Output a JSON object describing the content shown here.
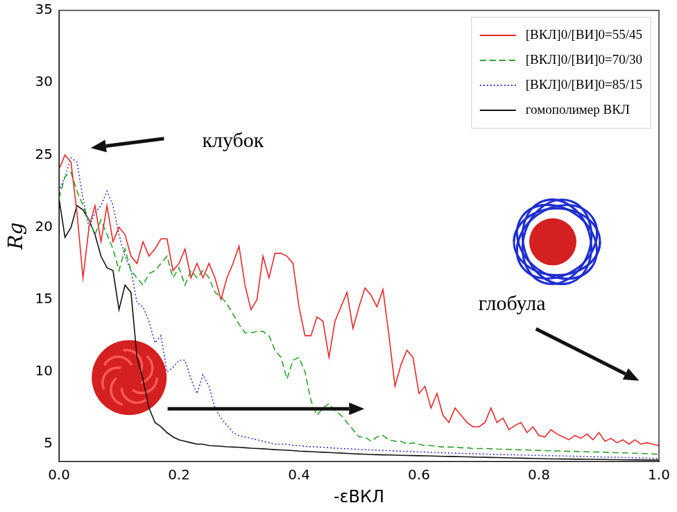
{
  "chart_data": {
    "type": "line",
    "x_label": "-εВКЛ",
    "y_label": "Rg",
    "annotations": [
      "клубок",
      "глобула"
    ],
    "legend": "upper right",
    "grid": false,
    "xlim": [
      0,
      1
    ],
    "xticks": [
      {
        "value": 0,
        "label": "0.0"
      },
      {
        "value": 0.2,
        "label": "0.2"
      },
      {
        "value": 0.4,
        "label": "0.4"
      },
      {
        "value": 0.6,
        "label": "0.6"
      },
      {
        "value": 0.8,
        "label": "0.8"
      },
      {
        "value": 1,
        "label": "1.0"
      }
    ],
    "ylim": [
      3.8,
      35
    ],
    "yticks": [
      5,
      10,
      15,
      20,
      25,
      30,
      35
    ],
    "x": [
      0,
      0.01,
      0.02,
      0.03,
      0.04,
      0.05,
      0.06,
      0.07,
      0.08,
      0.09,
      0.1,
      0.11,
      0.12,
      0.13,
      0.14,
      0.15,
      0.16,
      0.17,
      0.18,
      0.19,
      0.2,
      0.21,
      0.22,
      0.23,
      0.24,
      0.25,
      0.26,
      0.27,
      0.28,
      0.29,
      0.3,
      0.31,
      0.32,
      0.33,
      0.34,
      0.35,
      0.36,
      0.37,
      0.38,
      0.39,
      0.4,
      0.41,
      0.42,
      0.43,
      0.44,
      0.45,
      0.46,
      0.47,
      0.48,
      0.49,
      0.5,
      0.51,
      0.52,
      0.53,
      0.54,
      0.55,
      0.56,
      0.57,
      0.58,
      0.59,
      0.6,
      0.61,
      0.62,
      0.63,
      0.64,
      0.65,
      0.66,
      0.67,
      0.68,
      0.69,
      0.7,
      0.71,
      0.72,
      0.73,
      0.74,
      0.75,
      0.76,
      0.77,
      0.78,
      0.79,
      0.8,
      0.81,
      0.82,
      0.83,
      0.84,
      0.85,
      0.86,
      0.87,
      0.88,
      0.89,
      0.9,
      0.91,
      0.92,
      0.93,
      0.94,
      0.95,
      0.96,
      0.97,
      0.98,
      0.99,
      1
    ],
    "series": [
      {
        "name": "[ВКЛ]0/[ВИ]0=55/45",
        "color": "#e8282b",
        "line_style": "solid",
        "values": [
          24,
          25,
          24.5,
          21,
          16.5,
          20,
          21.5,
          19,
          21.5,
          19,
          20,
          19.5,
          18,
          17.5,
          19,
          18,
          18.5,
          19.2,
          19.2,
          17,
          17.5,
          18.5,
          16.5,
          17.5,
          16.5,
          17.5,
          16.5,
          15,
          16.5,
          17.5,
          18.7,
          16,
          14.3,
          15,
          18,
          16.5,
          18.2,
          18.2,
          18,
          17.5,
          14.5,
          12.5,
          12.5,
          13.8,
          13.5,
          11,
          13.5,
          14.5,
          15.5,
          13,
          14.5,
          15.8,
          15.3,
          14.5,
          15.7,
          12.5,
          9,
          10.5,
          11.5,
          11,
          8.5,
          9,
          7.5,
          8.5,
          7,
          6.5,
          7.5,
          7,
          6.5,
          6.2,
          6.2,
          6.5,
          7.5,
          6.5,
          6.8,
          6,
          6.3,
          6.5,
          5.8,
          6.2,
          5.6,
          5.5,
          6,
          5.7,
          5.5,
          5.3,
          5.6,
          5.4,
          5.7,
          5.3,
          5.8,
          5.2,
          5.4,
          5.1,
          5.3,
          5.0,
          5.3,
          5.0,
          5.1,
          5.0,
          4.9
        ]
      },
      {
        "name": "[ВКЛ]0/[ВИ]0=70/30",
        "color": "#2ca02c",
        "line_style": "dashed",
        "values": [
          22,
          23.5,
          23.8,
          22.5,
          21.5,
          20.5,
          19.5,
          20.5,
          19.5,
          18.5,
          17,
          18.5,
          17,
          16.5,
          16,
          16.8,
          17,
          17.5,
          18,
          16.5,
          17.2,
          16,
          17,
          16.5,
          17,
          16.5,
          15.5,
          15.2,
          14.7,
          14,
          13.3,
          12.7,
          12.7,
          12.8,
          12.8,
          12.5,
          11.5,
          11,
          9.5,
          10.8,
          11,
          10,
          8,
          7,
          7.5,
          7.8,
          7.3,
          7,
          6.5,
          6,
          5.5,
          5.5,
          5.2,
          5.5,
          5.6,
          5.3,
          5.2,
          5.2,
          5.0,
          5.1,
          5.0,
          4.9,
          4.9,
          4.85,
          4.8,
          4.8,
          4.8,
          4.75,
          4.75,
          4.7,
          4.7,
          4.7,
          4.68,
          4.66,
          4.65,
          4.64,
          4.62,
          4.6,
          4.6,
          4.58,
          4.57,
          4.55,
          4.54,
          4.53,
          4.52,
          4.5,
          4.5,
          4.48,
          4.47,
          4.46,
          4.45,
          4.44,
          4.42,
          4.41,
          4.4,
          4.38,
          4.37,
          4.36,
          4.34,
          4.32,
          4.3
        ]
      },
      {
        "name": "[ВКЛ]0/[ВИ]0=85/15",
        "color": "#3535d6",
        "line_style": "dotted",
        "values": [
          22.5,
          23.5,
          24.8,
          24.5,
          22,
          20,
          21,
          21.5,
          22.5,
          21.5,
          19.5,
          18,
          17,
          14.8,
          14.5,
          13.5,
          12,
          12.5,
          10,
          10.3,
          10.8,
          10.8,
          9.5,
          8.5,
          9.8,
          9,
          7.5,
          6.8,
          6.3,
          5.8,
          5.6,
          5.5,
          5.4,
          5.3,
          5.2,
          5.1,
          5.0,
          5.0,
          5.0,
          4.9,
          4.9,
          4.85,
          4.82,
          4.8,
          4.78,
          4.75,
          4.72,
          4.7,
          4.68,
          4.66,
          4.64,
          4.62,
          4.6,
          4.58,
          4.56,
          4.55,
          4.53,
          4.51,
          4.5,
          4.48,
          4.46,
          4.45,
          4.43,
          4.42,
          4.4,
          4.39,
          4.38,
          4.36,
          4.35,
          4.34,
          4.33,
          4.32,
          4.3,
          4.29,
          4.28,
          4.27,
          4.26,
          4.25,
          4.24,
          4.23,
          4.22,
          4.21,
          4.2,
          4.19,
          4.18,
          4.17,
          4.16,
          4.15,
          4.14,
          4.13,
          4.12,
          4.11,
          4.1,
          4.09,
          4.08,
          4.07,
          4.06,
          4.05,
          4.04,
          4.02,
          4.0
        ]
      },
      {
        "name": "гомополимер ВКЛ",
        "color": "#111111",
        "line_style": "solid",
        "values": [
          22,
          19.3,
          20,
          21.5,
          21.2,
          20.5,
          19.5,
          18,
          17.2,
          17,
          14.3,
          16,
          15.5,
          11,
          9.5,
          7.5,
          6.5,
          6.2,
          5.8,
          5.5,
          5.3,
          5.2,
          5.1,
          5.0,
          5.0,
          4.9,
          4.88,
          4.85,
          4.82,
          4.8,
          4.78,
          4.75,
          4.72,
          4.7,
          4.68,
          4.65,
          4.62,
          4.6,
          4.58,
          4.55,
          4.52,
          4.5,
          4.48,
          4.46,
          4.44,
          4.42,
          4.4,
          4.38,
          4.36,
          4.34,
          4.32,
          4.3,
          4.28,
          4.27,
          4.26,
          4.25,
          4.24,
          4.23,
          4.22,
          4.21,
          4.2,
          4.19,
          4.18,
          4.17,
          4.16,
          4.15,
          4.14,
          4.13,
          4.12,
          4.11,
          4.1,
          4.09,
          4.08,
          4.07,
          4.06,
          4.05,
          4.04,
          4.03,
          4.02,
          4.01,
          4.0,
          3.99,
          3.98,
          3.98,
          3.97,
          3.97,
          3.96,
          3.96,
          3.95,
          3.95,
          3.94,
          3.94,
          3.93,
          3.93,
          3.92,
          3.92,
          3.91,
          3.91,
          3.9,
          3.9,
          3.9
        ]
      }
    ]
  }
}
